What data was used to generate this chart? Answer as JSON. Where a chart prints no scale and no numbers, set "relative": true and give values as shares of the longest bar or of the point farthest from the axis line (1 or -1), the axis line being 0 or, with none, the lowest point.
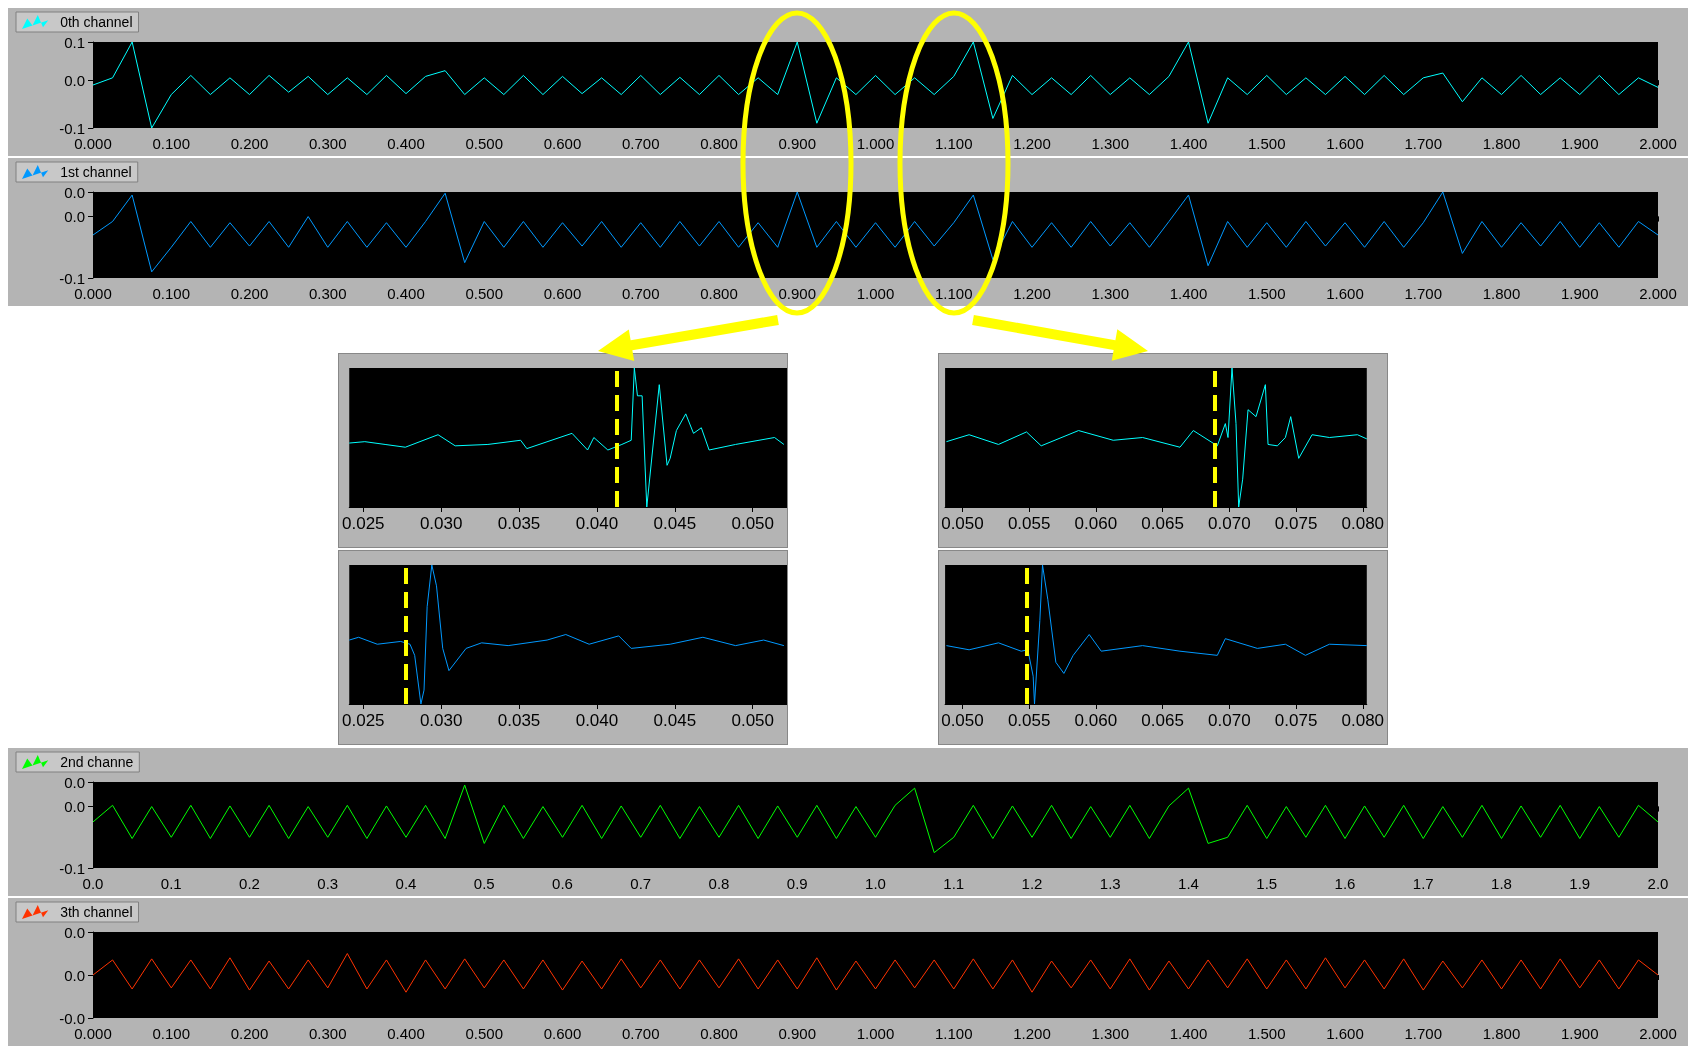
{
  "chart_data": [
    {
      "type": "line",
      "legend": "top left",
      "marker": "none",
      "xlim": [
        0,
        2
      ],
      "ylim": [
        -0.1,
        0.08
      ],
      "yticks": [
        {
          "value": -0.1,
          "label": "-0.1"
        },
        {
          "value": 0,
          "label": "0.0"
        },
        {
          "value": 0.08,
          "label": "0.1"
        }
      ],
      "xticks": [
        {
          "value": 0,
          "label": "0.000"
        },
        {
          "value": 0.1,
          "label": "0.100"
        },
        {
          "value": 0.2,
          "label": "0.200"
        },
        {
          "value": 0.3,
          "label": "0.300"
        },
        {
          "value": 0.4,
          "label": "0.400"
        },
        {
          "value": 0.5,
          "label": "0.500"
        },
        {
          "value": 0.6,
          "label": "0.600"
        },
        {
          "value": 0.7,
          "label": "0.700"
        },
        {
          "value": 0.8,
          "label": "0.800"
        },
        {
          "value": 0.9,
          "label": "0.900"
        },
        {
          "value": 1,
          "label": "1.000"
        },
        {
          "value": 1.1,
          "label": "1.100"
        },
        {
          "value": 1.2,
          "label": "1.200"
        },
        {
          "value": 1.3,
          "label": "1.300"
        },
        {
          "value": 1.4,
          "label": "1.400"
        },
        {
          "value": 1.5,
          "label": "1.500"
        },
        {
          "value": 1.6,
          "label": "1.600"
        },
        {
          "value": 1.7,
          "label": "1.700"
        },
        {
          "value": 1.8,
          "label": "1.800"
        },
        {
          "value": 1.9,
          "label": "1.900"
        },
        {
          "value": 2,
          "label": "2.000"
        }
      ],
      "x": [
        0,
        0.025,
        0.05,
        0.075,
        0.1,
        0.125,
        0.15,
        0.175,
        0.2,
        0.225,
        0.25,
        0.275,
        0.3,
        0.325,
        0.35,
        0.375,
        0.4,
        0.425,
        0.45,
        0.475,
        0.5,
        0.525,
        0.55,
        0.575,
        0.6,
        0.625,
        0.65,
        0.675,
        0.7,
        0.725,
        0.75,
        0.775,
        0.8,
        0.825,
        0.85,
        0.875,
        0.9,
        0.925,
        0.95,
        0.975,
        1,
        1.025,
        1.05,
        1.075,
        1.1,
        1.125,
        1.15,
        1.175,
        1.2,
        1.225,
        1.25,
        1.275,
        1.3,
        1.325,
        1.35,
        1.375,
        1.4,
        1.425,
        1.45,
        1.475,
        1.5,
        1.525,
        1.55,
        1.575,
        1.6,
        1.625,
        1.65,
        1.675,
        1.7,
        1.725,
        1.75,
        1.775,
        1.8,
        1.825,
        1.85,
        1.875,
        1.9,
        1.925,
        1.95,
        1.975,
        2
      ],
      "series": [
        {
          "name": "0th channel",
          "color": "#00ffff",
          "values": [
            -0.01,
            0.005,
            0.08,
            -0.1,
            -0.03,
            0.01,
            -0.03,
            0.005,
            -0.03,
            0.01,
            -0.025,
            0.008,
            -0.03,
            0.005,
            -0.03,
            0.01,
            -0.028,
            0.008,
            0.02,
            -0.03,
            0.005,
            -0.03,
            0.01,
            -0.03,
            0.008,
            -0.028,
            0.005,
            -0.03,
            0.01,
            -0.03,
            0.006,
            -0.03,
            0.01,
            -0.03,
            0.005,
            -0.03,
            0.08,
            -0.09,
            0.005,
            -0.03,
            0.01,
            -0.03,
            0.005,
            -0.03,
            0.008,
            0.08,
            -0.08,
            0.01,
            -0.03,
            0.005,
            -0.03,
            0.01,
            -0.03,
            0.005,
            -0.03,
            0.008,
            0.08,
            -0.09,
            0.005,
            -0.03,
            0.01,
            -0.03,
            0.005,
            -0.03,
            0.008,
            -0.03,
            0.01,
            -0.03,
            0.005,
            0.015,
            -0.045,
            0.005,
            -0.03,
            0.01,
            -0.03,
            0.005,
            -0.03,
            0.01,
            -0.03,
            0.005,
            -0.015
          ]
        }
      ]
    },
    {
      "type": "line",
      "legend": "top left",
      "marker": "none",
      "xlim": [
        0,
        2
      ],
      "ylim": [
        -0.1,
        0.04
      ],
      "yticks": [
        {
          "value": -0.1,
          "label": "-0.1"
        },
        {
          "value": 0,
          "label": "0.0"
        },
        {
          "value": 0.04,
          "label": "0.0"
        }
      ],
      "xticks": [
        {
          "value": 0,
          "label": "0.000"
        },
        {
          "value": 0.1,
          "label": "0.100"
        },
        {
          "value": 0.2,
          "label": "0.200"
        },
        {
          "value": 0.3,
          "label": "0.300"
        },
        {
          "value": 0.4,
          "label": "0.400"
        },
        {
          "value": 0.5,
          "label": "0.500"
        },
        {
          "value": 0.6,
          "label": "0.600"
        },
        {
          "value": 0.7,
          "label": "0.700"
        },
        {
          "value": 0.8,
          "label": "0.800"
        },
        {
          "value": 0.9,
          "label": "0.900"
        },
        {
          "value": 1,
          "label": "1.000"
        },
        {
          "value": 1.1,
          "label": "1.100"
        },
        {
          "value": 1.2,
          "label": "1.200"
        },
        {
          "value": 1.3,
          "label": "1.300"
        },
        {
          "value": 1.4,
          "label": "1.400"
        },
        {
          "value": 1.5,
          "label": "1.500"
        },
        {
          "value": 1.6,
          "label": "1.600"
        },
        {
          "value": 1.7,
          "label": "1.700"
        },
        {
          "value": 1.8,
          "label": "1.800"
        },
        {
          "value": 1.9,
          "label": "1.900"
        },
        {
          "value": 2,
          "label": "2.000"
        }
      ],
      "x": [
        0,
        0.025,
        0.05,
        0.075,
        0.1,
        0.125,
        0.15,
        0.175,
        0.2,
        0.225,
        0.25,
        0.275,
        0.3,
        0.325,
        0.35,
        0.375,
        0.4,
        0.425,
        0.45,
        0.475,
        0.5,
        0.525,
        0.55,
        0.575,
        0.6,
        0.625,
        0.65,
        0.675,
        0.7,
        0.725,
        0.75,
        0.775,
        0.8,
        0.825,
        0.85,
        0.875,
        0.9,
        0.925,
        0.95,
        0.975,
        1,
        1.025,
        1.05,
        1.075,
        1.1,
        1.125,
        1.15,
        1.175,
        1.2,
        1.225,
        1.25,
        1.275,
        1.3,
        1.325,
        1.35,
        1.375,
        1.4,
        1.425,
        1.45,
        1.475,
        1.5,
        1.525,
        1.55,
        1.575,
        1.6,
        1.625,
        1.65,
        1.675,
        1.7,
        1.725,
        1.75,
        1.775,
        1.8,
        1.825,
        1.85,
        1.875,
        1.9,
        1.925,
        1.95,
        1.975,
        2
      ],
      "series": [
        {
          "name": "1st channel",
          "color": "#0099ff",
          "values": [
            -0.03,
            -0.008,
            0.035,
            -0.09,
            -0.05,
            -0.008,
            -0.05,
            -0.01,
            -0.048,
            -0.008,
            -0.05,
            0.0,
            -0.05,
            -0.008,
            -0.05,
            -0.01,
            -0.05,
            -0.008,
            0.038,
            -0.075,
            -0.008,
            -0.05,
            -0.008,
            -0.05,
            -0.01,
            -0.048,
            -0.008,
            -0.05,
            -0.01,
            -0.05,
            -0.008,
            -0.048,
            -0.008,
            -0.05,
            -0.01,
            -0.05,
            0.04,
            -0.05,
            -0.008,
            -0.05,
            -0.01,
            -0.05,
            -0.008,
            -0.048,
            -0.01,
            0.035,
            -0.07,
            -0.008,
            -0.05,
            -0.01,
            -0.05,
            -0.008,
            -0.048,
            -0.01,
            -0.05,
            -0.008,
            0.035,
            -0.08,
            -0.008,
            -0.05,
            -0.01,
            -0.05,
            -0.008,
            -0.048,
            -0.01,
            -0.05,
            -0.008,
            -0.05,
            -0.01,
            0.04,
            -0.06,
            -0.008,
            -0.05,
            -0.01,
            -0.048,
            -0.008,
            -0.05,
            -0.01,
            -0.05,
            -0.008,
            -0.03
          ]
        }
      ]
    },
    {
      "type": "line",
      "legend": "top left",
      "marker": "none",
      "xlim": [
        0,
        2
      ],
      "ylim": [
        -0.1,
        0.04
      ],
      "yticks": [
        {
          "value": -0.1,
          "label": "-0.1"
        },
        {
          "value": 0,
          "label": "0.0"
        },
        {
          "value": 0.04,
          "label": "0.0"
        }
      ],
      "xticks": [
        {
          "value": 0,
          "label": "0.0"
        },
        {
          "value": 0.1,
          "label": "0.1"
        },
        {
          "value": 0.2,
          "label": "0.2"
        },
        {
          "value": 0.3,
          "label": "0.3"
        },
        {
          "value": 0.4,
          "label": "0.4"
        },
        {
          "value": 0.5,
          "label": "0.5"
        },
        {
          "value": 0.6,
          "label": "0.6"
        },
        {
          "value": 0.7,
          "label": "0.7"
        },
        {
          "value": 0.8,
          "label": "0.8"
        },
        {
          "value": 0.9,
          "label": "0.9"
        },
        {
          "value": 1,
          "label": "1.0"
        },
        {
          "value": 1.1,
          "label": "1.1"
        },
        {
          "value": 1.2,
          "label": "1.2"
        },
        {
          "value": 1.3,
          "label": "1.3"
        },
        {
          "value": 1.4,
          "label": "1.4"
        },
        {
          "value": 1.5,
          "label": "1.5"
        },
        {
          "value": 1.6,
          "label": "1.6"
        },
        {
          "value": 1.7,
          "label": "1.7"
        },
        {
          "value": 1.8,
          "label": "1.8"
        },
        {
          "value": 1.9,
          "label": "1.9"
        },
        {
          "value": 2,
          "label": "2.0"
        }
      ],
      "x": [
        0,
        0.025,
        0.05,
        0.075,
        0.1,
        0.125,
        0.15,
        0.175,
        0.2,
        0.225,
        0.25,
        0.275,
        0.3,
        0.325,
        0.35,
        0.375,
        0.4,
        0.425,
        0.45,
        0.475,
        0.5,
        0.525,
        0.55,
        0.575,
        0.6,
        0.625,
        0.65,
        0.675,
        0.7,
        0.725,
        0.75,
        0.775,
        0.8,
        0.825,
        0.85,
        0.875,
        0.9,
        0.925,
        0.95,
        0.975,
        1,
        1.025,
        1.05,
        1.075,
        1.1,
        1.125,
        1.15,
        1.175,
        1.2,
        1.225,
        1.25,
        1.275,
        1.3,
        1.325,
        1.35,
        1.375,
        1.4,
        1.425,
        1.45,
        1.475,
        1.5,
        1.525,
        1.55,
        1.575,
        1.6,
        1.625,
        1.65,
        1.675,
        1.7,
        1.725,
        1.75,
        1.775,
        1.8,
        1.825,
        1.85,
        1.875,
        1.9,
        1.925,
        1.95,
        1.975,
        2
      ],
      "series": [
        {
          "name": "2nd channe",
          "color": "#00ff00",
          "values": [
            -0.025,
            0.002,
            -0.052,
            0.0,
            -0.05,
            0.002,
            -0.052,
            0.001,
            -0.05,
            0.002,
            -0.052,
            0.0,
            -0.05,
            0.002,
            -0.052,
            0.001,
            -0.05,
            0.002,
            -0.052,
            0.035,
            -0.06,
            0.002,
            -0.052,
            0.0,
            -0.05,
            0.002,
            -0.052,
            0.001,
            -0.05,
            0.002,
            -0.052,
            0.0,
            -0.05,
            0.002,
            -0.052,
            0.001,
            -0.05,
            0.002,
            -0.052,
            0.0,
            -0.05,
            0.002,
            0.03,
            -0.075,
            -0.05,
            0.002,
            -0.052,
            0.001,
            -0.05,
            0.002,
            -0.052,
            0.0,
            -0.05,
            0.002,
            -0.052,
            0.001,
            0.03,
            -0.06,
            -0.05,
            0.002,
            -0.052,
            0.0,
            -0.05,
            0.002,
            -0.052,
            0.001,
            -0.05,
            0.002,
            -0.052,
            0.0,
            -0.05,
            0.002,
            -0.052,
            0.001,
            -0.05,
            0.002,
            -0.052,
            0.0,
            -0.05,
            0.002,
            -0.025
          ]
        }
      ]
    },
    {
      "type": "line",
      "legend": "top left",
      "marker": "none",
      "xlim": [
        0,
        2
      ],
      "ylim": [
        -0.04,
        0.04
      ],
      "yticks": [
        {
          "value": -0.04,
          "label": "-0.0"
        },
        {
          "value": 0,
          "label": "0.0"
        },
        {
          "value": 0.04,
          "label": "0.0"
        }
      ],
      "xticks": [
        {
          "value": 0,
          "label": "0.000"
        },
        {
          "value": 0.1,
          "label": "0.100"
        },
        {
          "value": 0.2,
          "label": "0.200"
        },
        {
          "value": 0.3,
          "label": "0.300"
        },
        {
          "value": 0.4,
          "label": "0.400"
        },
        {
          "value": 0.5,
          "label": "0.500"
        },
        {
          "value": 0.6,
          "label": "0.600"
        },
        {
          "value": 0.7,
          "label": "0.700"
        },
        {
          "value": 0.8,
          "label": "0.800"
        },
        {
          "value": 0.9,
          "label": "0.900"
        },
        {
          "value": 1,
          "label": "1.000"
        },
        {
          "value": 1.1,
          "label": "1.100"
        },
        {
          "value": 1.2,
          "label": "1.200"
        },
        {
          "value": 1.3,
          "label": "1.300"
        },
        {
          "value": 1.4,
          "label": "1.400"
        },
        {
          "value": 1.5,
          "label": "1.500"
        },
        {
          "value": 1.6,
          "label": "1.600"
        },
        {
          "value": 1.7,
          "label": "1.700"
        },
        {
          "value": 1.8,
          "label": "1.800"
        },
        {
          "value": 1.9,
          "label": "1.900"
        },
        {
          "value": 2,
          "label": "2.000"
        }
      ],
      "x": [
        0,
        0.025,
        0.05,
        0.075,
        0.1,
        0.125,
        0.15,
        0.175,
        0.2,
        0.225,
        0.25,
        0.275,
        0.3,
        0.325,
        0.35,
        0.375,
        0.4,
        0.425,
        0.45,
        0.475,
        0.5,
        0.525,
        0.55,
        0.575,
        0.6,
        0.625,
        0.65,
        0.675,
        0.7,
        0.725,
        0.75,
        0.775,
        0.8,
        0.825,
        0.85,
        0.875,
        0.9,
        0.925,
        0.95,
        0.975,
        1,
        1.025,
        1.05,
        1.075,
        1.1,
        1.125,
        1.15,
        1.175,
        1.2,
        1.225,
        1.25,
        1.275,
        1.3,
        1.325,
        1.35,
        1.375,
        1.4,
        1.425,
        1.45,
        1.475,
        1.5,
        1.525,
        1.55,
        1.575,
        1.6,
        1.625,
        1.65,
        1.675,
        1.7,
        1.725,
        1.75,
        1.775,
        1.8,
        1.825,
        1.85,
        1.875,
        1.9,
        1.925,
        1.95,
        1.975,
        2
      ],
      "series": [
        {
          "name": "3th channel",
          "color": "#ff3300",
          "values": [
            0.0,
            0.014,
            -0.013,
            0.015,
            -0.012,
            0.014,
            -0.013,
            0.016,
            -0.014,
            0.013,
            -0.013,
            0.014,
            -0.012,
            0.02,
            -0.013,
            0.014,
            -0.016,
            0.014,
            -0.013,
            0.015,
            -0.012,
            0.014,
            -0.013,
            0.014,
            -0.014,
            0.013,
            -0.013,
            0.015,
            -0.012,
            0.014,
            -0.013,
            0.014,
            -0.012,
            0.015,
            -0.013,
            0.014,
            -0.013,
            0.016,
            -0.014,
            0.013,
            -0.013,
            0.014,
            -0.012,
            0.014,
            -0.013,
            0.015,
            -0.013,
            0.014,
            -0.016,
            0.013,
            -0.012,
            0.014,
            -0.013,
            0.015,
            -0.014,
            0.013,
            -0.013,
            0.014,
            -0.012,
            0.015,
            -0.013,
            0.014,
            -0.013,
            0.016,
            -0.012,
            0.014,
            -0.013,
            0.015,
            -0.014,
            0.013,
            -0.012,
            0.014,
            -0.013,
            0.014,
            -0.013,
            0.015,
            -0.012,
            0.014,
            -0.013,
            0.014,
            0.0
          ]
        }
      ]
    },
    {
      "type": "line",
      "relative": true,
      "marker": "none",
      "xlim": [
        0.0241,
        0.0522
      ],
      "xticks": [
        {
          "value": 0.025,
          "label": "0.025"
        },
        {
          "value": 0.03,
          "label": "0.030"
        },
        {
          "value": 0.035,
          "label": "0.035"
        },
        {
          "value": 0.04,
          "label": "0.040"
        },
        {
          "value": 0.045,
          "label": "0.045"
        },
        {
          "value": 0.05,
          "label": "0.050"
        }
      ],
      "ref_lines": [
        {
          "axis": "x",
          "value": 0.0413,
          "color": "#ffff00",
          "line_style": "dashed"
        }
      ],
      "series": [
        {
          "color": "#00ffff",
          "x": [
            0.0241,
            0.0251,
            0.0264,
            0.0277,
            0.0298,
            0.0309,
            0.033,
            0.0351,
            0.0355,
            0.0384,
            0.0394,
            0.0398,
            0.0407,
            0.0416,
            0.0422,
            0.0424,
            0.0426,
            0.0429,
            0.0432,
            0.044,
            0.0445,
            0.0447,
            0.0451,
            0.0457,
            0.0462,
            0.0467,
            0.0472,
            0.0489,
            0.0514,
            0.052
          ],
          "values": [
            0.46,
            0.47,
            0.45,
            0.43,
            0.52,
            0.44,
            0.45,
            0.48,
            0.42,
            0.53,
            0.41,
            0.5,
            0.41,
            0.45,
            0.48,
            1.0,
            0.8,
            0.8,
            0.0,
            0.88,
            0.3,
            0.35,
            0.55,
            0.67,
            0.53,
            0.57,
            0.41,
            0.45,
            0.5,
            0.45
          ]
        }
      ]
    },
    {
      "type": "line",
      "relative": true,
      "marker": "none",
      "xlim": [
        0.0241,
        0.0522
      ],
      "xticks": [
        {
          "value": 0.025,
          "label": "0.025"
        },
        {
          "value": 0.03,
          "label": "0.030"
        },
        {
          "value": 0.035,
          "label": "0.035"
        },
        {
          "value": 0.04,
          "label": "0.040"
        },
        {
          "value": 0.045,
          "label": "0.045"
        },
        {
          "value": 0.05,
          "label": "0.050"
        }
      ],
      "ref_lines": [
        {
          "axis": "x",
          "value": 0.0277,
          "color": "#ffff00",
          "line_style": "dashed"
        }
      ],
      "series": [
        {
          "color": "#0099ff",
          "x": [
            0.0241,
            0.0247,
            0.0259,
            0.0274,
            0.028,
            0.0283,
            0.0287,
            0.0289,
            0.0291,
            0.0294,
            0.0297,
            0.0301,
            0.0305,
            0.0316,
            0.0326,
            0.0343,
            0.0368,
            0.038,
            0.0395,
            0.0414,
            0.0422,
            0.0447,
            0.0468,
            0.0489,
            0.0507,
            0.052
          ],
          "values": [
            0.46,
            0.48,
            0.43,
            0.45,
            0.43,
            0.35,
            0.0,
            0.1,
            0.7,
            1.0,
            0.85,
            0.4,
            0.24,
            0.4,
            0.44,
            0.42,
            0.46,
            0.5,
            0.43,
            0.49,
            0.4,
            0.43,
            0.48,
            0.42,
            0.46,
            0.42
          ]
        }
      ]
    },
    {
      "type": "line",
      "relative": true,
      "marker": "none",
      "xlim": [
        0.0487,
        0.0803
      ],
      "xticks": [
        {
          "value": 0.05,
          "label": "0.050"
        },
        {
          "value": 0.055,
          "label": "0.055"
        },
        {
          "value": 0.06,
          "label": "0.060"
        },
        {
          "value": 0.065,
          "label": "0.065"
        },
        {
          "value": 0.07,
          "label": "0.070"
        },
        {
          "value": 0.075,
          "label": "0.075"
        },
        {
          "value": 0.08,
          "label": "0.080"
        }
      ],
      "ref_lines": [
        {
          "axis": "x",
          "value": 0.0689,
          "color": "#ffff00",
          "line_style": "dashed"
        }
      ],
      "series": [
        {
          "color": "#00ffff",
          "x": [
            0.0488,
            0.0505,
            0.0527,
            0.0548,
            0.0559,
            0.0587,
            0.0613,
            0.0635,
            0.0663,
            0.0673,
            0.0691,
            0.0697,
            0.0699,
            0.0702,
            0.0705,
            0.0707,
            0.071,
            0.0714,
            0.072,
            0.0727,
            0.0729,
            0.0736,
            0.0742,
            0.0746,
            0.0752,
            0.0762,
            0.0775,
            0.0796,
            0.0803
          ],
          "values": [
            0.47,
            0.52,
            0.45,
            0.54,
            0.44,
            0.55,
            0.48,
            0.5,
            0.43,
            0.55,
            0.44,
            0.6,
            0.5,
            1.0,
            0.6,
            0.0,
            0.2,
            0.7,
            0.65,
            0.88,
            0.45,
            0.44,
            0.5,
            0.65,
            0.35,
            0.52,
            0.5,
            0.52,
            0.49
          ]
        }
      ]
    },
    {
      "type": "line",
      "relative": true,
      "marker": "none",
      "xlim": [
        0.0487,
        0.0803
      ],
      "xticks": [
        {
          "value": 0.05,
          "label": "0.050"
        },
        {
          "value": 0.055,
          "label": "0.055"
        },
        {
          "value": 0.06,
          "label": "0.060"
        },
        {
          "value": 0.065,
          "label": "0.065"
        },
        {
          "value": 0.07,
          "label": "0.070"
        },
        {
          "value": 0.075,
          "label": "0.075"
        },
        {
          "value": 0.08,
          "label": "0.080"
        }
      ],
      "ref_lines": [
        {
          "axis": "x",
          "value": 0.0548,
          "color": "#ffff00",
          "line_style": "dashed"
        }
      ],
      "series": [
        {
          "color": "#0099ff",
          "x": [
            0.0488,
            0.0505,
            0.0527,
            0.0544,
            0.0549,
            0.0553,
            0.0554,
            0.0558,
            0.056,
            0.0564,
            0.057,
            0.0576,
            0.0583,
            0.0595,
            0.0604,
            0.0635,
            0.0663,
            0.0691,
            0.0697,
            0.0721,
            0.0742,
            0.0757,
            0.0775,
            0.0803
          ],
          "values": [
            0.42,
            0.39,
            0.44,
            0.38,
            0.39,
            0.2,
            0.0,
            0.6,
            1.0,
            0.75,
            0.3,
            0.22,
            0.35,
            0.5,
            0.38,
            0.42,
            0.38,
            0.35,
            0.47,
            0.4,
            0.43,
            0.35,
            0.43,
            0.42
          ]
        }
      ]
    }
  ]
}
